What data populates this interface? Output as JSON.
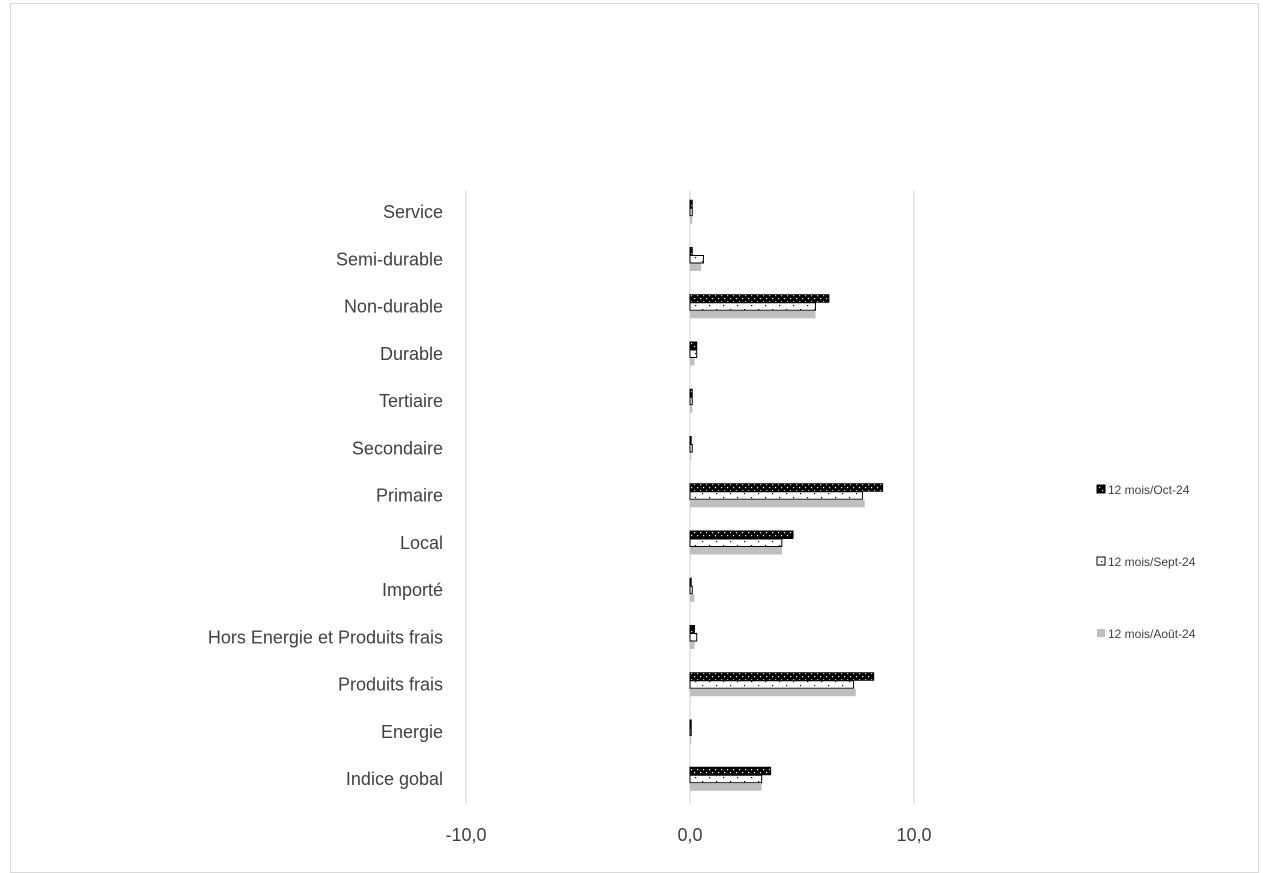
{
  "chart_data": {
    "type": "bar",
    "orientation": "horizontal",
    "title": "",
    "xlabel": "",
    "ylabel": "",
    "xlim": [
      -20,
      20
    ],
    "x_ticks": [
      "-10,0",
      "0,0",
      "10,0"
    ],
    "x_tick_values": [
      -10,
      0,
      10
    ],
    "grid": "vertical-major",
    "legend_position": "right",
    "categories": [
      "Service",
      "Semi-durable",
      "Non-durable",
      "Durable",
      "Tertiaire",
      "Secondaire",
      "Primaire",
      "Local",
      "Importé",
      "Hors Energie et Produits frais",
      "Produits frais",
      "Energie",
      "Indice gobal"
    ],
    "series": [
      {
        "name": "12 mois/Oct-24",
        "color": "#000000",
        "pattern": "dotted-dark",
        "values": [
          0.1,
          0.1,
          6.2,
          0.3,
          0.1,
          0.0,
          8.6,
          4.6,
          0.0,
          0.2,
          8.2,
          0.0,
          3.6
        ]
      },
      {
        "name": "12 mois/Sept-24",
        "color": "#ffffff",
        "pattern": "dotted-light",
        "values": [
          0.1,
          0.6,
          5.6,
          0.3,
          0.1,
          0.1,
          7.7,
          4.1,
          0.1,
          0.3,
          7.3,
          0.0,
          3.2
        ]
      },
      {
        "name": "12 mois/Août-24",
        "color": "#bfbfbf",
        "pattern": "solid",
        "values": [
          0.1,
          0.5,
          5.6,
          0.2,
          0.1,
          0.0,
          7.8,
          4.1,
          0.2,
          0.2,
          7.4,
          0.0,
          3.2
        ]
      }
    ]
  }
}
